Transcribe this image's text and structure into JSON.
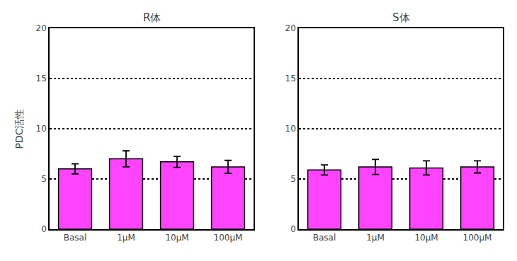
{
  "chart_data": [
    {
      "type": "bar",
      "title": "R体",
      "ylabel": "PDC活性",
      "categories": [
        "Basal",
        "1μM",
        "10μM",
        "100μM"
      ],
      "values": [
        6.0,
        7.0,
        6.7,
        6.2
      ],
      "errors": [
        0.5,
        0.8,
        0.55,
        0.65
      ],
      "color": "#FF44FF",
      "ylim": [
        0,
        20
      ],
      "yticks": [
        0,
        5,
        10,
        15,
        20
      ],
      "grid": true
    },
    {
      "type": "bar",
      "title": "S体",
      "categories": [
        "Basal",
        "1μM",
        "10μM",
        "100μM"
      ],
      "values": [
        5.9,
        6.2,
        6.1,
        6.2
      ],
      "errors": [
        0.5,
        0.75,
        0.7,
        0.6
      ],
      "color": "#FF44FF",
      "ylim": [
        0,
        20
      ],
      "yticks": [
        0,
        5,
        10,
        15,
        20
      ],
      "grid": true
    }
  ]
}
